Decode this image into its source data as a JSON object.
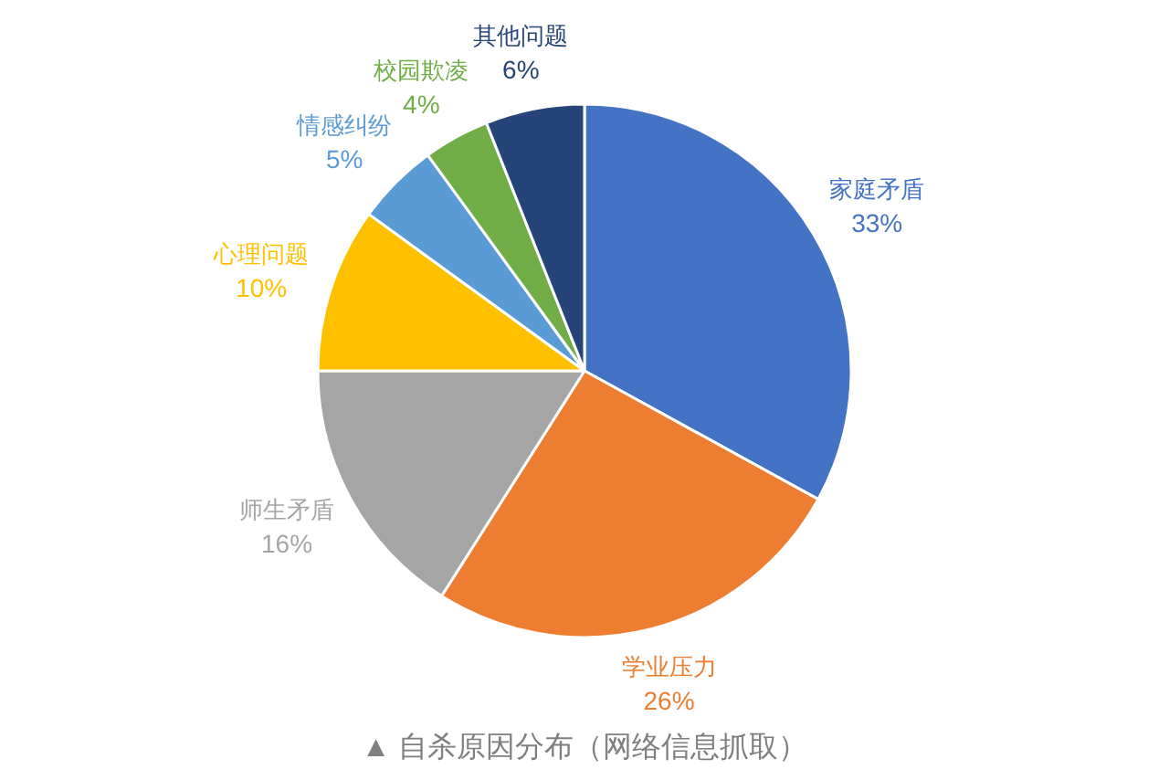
{
  "chart_data": {
    "type": "pie",
    "categories": [
      "家庭矛盾",
      "学业压力",
      "师生矛盾",
      "心理问题",
      "情感纠纷",
      "校园欺凌",
      "其他问题"
    ],
    "values": [
      33,
      26,
      16,
      10,
      5,
      4,
      6
    ],
    "colors": [
      "#4472c4",
      "#ed7d31",
      "#a5a5a5",
      "#ffc000",
      "#5b9bd5",
      "#70ad47",
      "#264478"
    ],
    "value_labels": [
      "33%",
      "26%",
      "16%",
      "10%",
      "5%",
      "4%",
      "6%"
    ],
    "annotations": [
      "▲ 自杀原因分布（网络信息抓取）"
    ]
  }
}
